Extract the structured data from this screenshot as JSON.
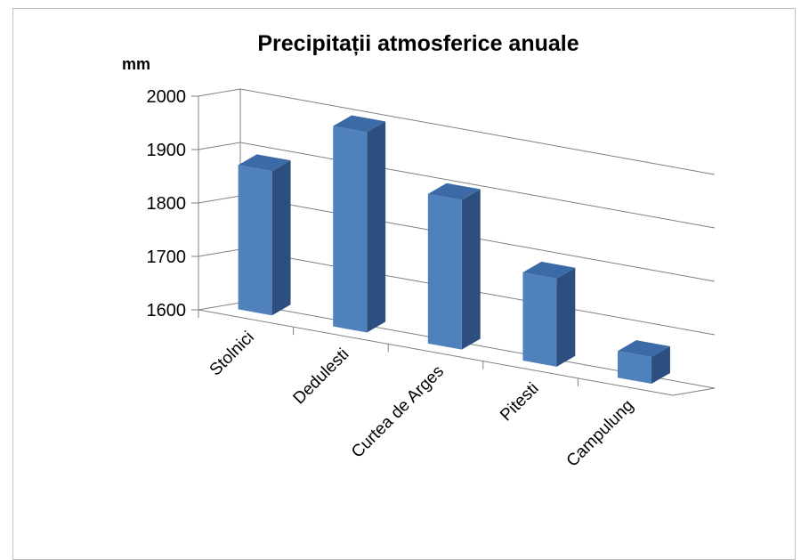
{
  "chart_data": {
    "type": "bar",
    "title": "Precipitații atmosferice anuale",
    "ylabel": "mm",
    "xlabel": "",
    "categories": [
      "Stolnici",
      "Dedulesti",
      "Curtea de Arges",
      "Pitesti",
      "Campulung"
    ],
    "values": [
      1870,
      1975,
      1880,
      1765,
      1650
    ],
    "ylim": [
      1600,
      2000
    ],
    "yticks": [
      "1600",
      "1700",
      "1800",
      "1900",
      "2000"
    ],
    "grid": true,
    "legend": "none",
    "style": "3d-column",
    "colors": {
      "bar_front": "#4f81bd",
      "bar_side": "#2d4f7f",
      "bar_top": "#3b6aa6",
      "grid": "#808080"
    }
  }
}
